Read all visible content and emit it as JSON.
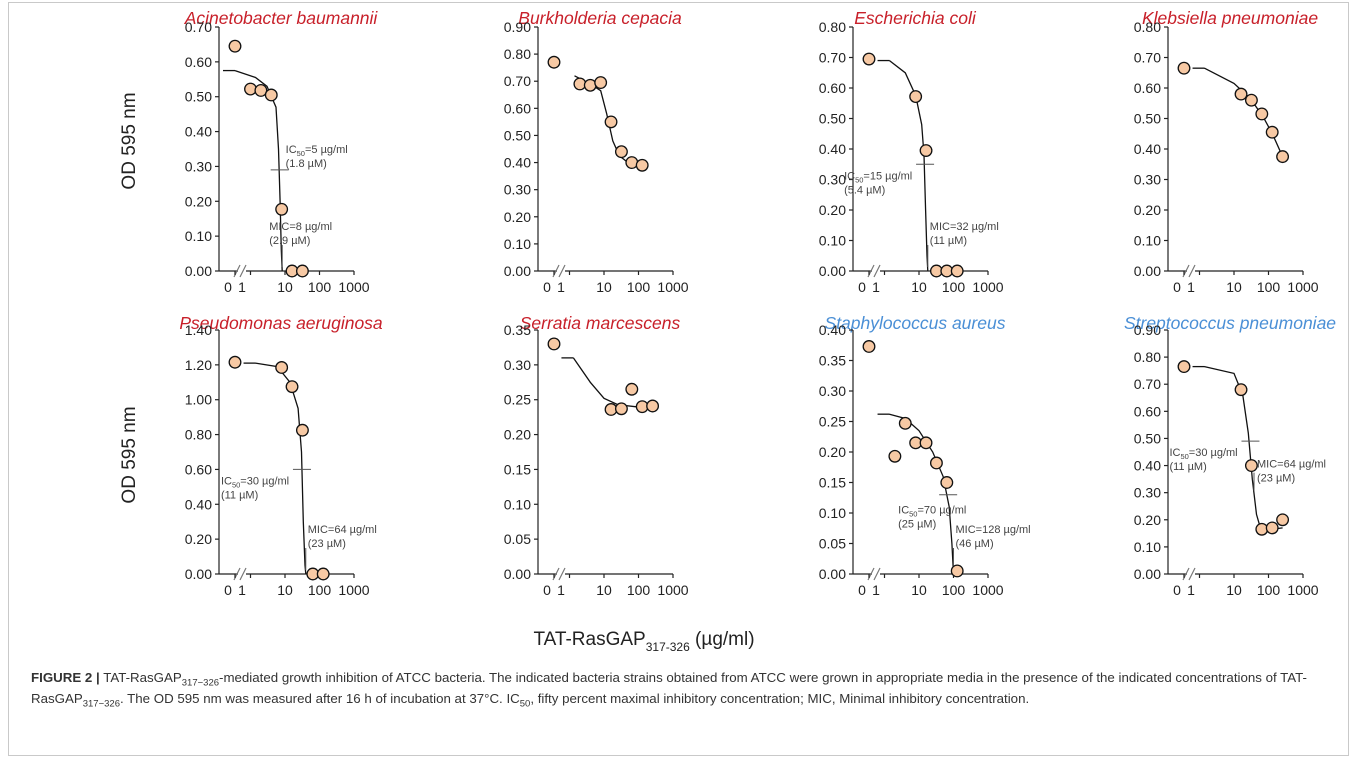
{
  "colors": {
    "gram_negative_title": "#c8202a",
    "gram_positive_title": "#4a8fd6",
    "marker_fill": "#f7c9a4",
    "marker_stroke": "#111111",
    "curve": "#111111",
    "axis": "#222222",
    "annotation_text": "#444444"
  },
  "figure": {
    "shared_ylabel": "OD 595 nm",
    "shared_xlabel_main": "TAT-RasGAP",
    "shared_xlabel_sub": "317-326",
    "shared_xlabel_unit": " (µg/ml)"
  },
  "caption": {
    "label": "FIGURE 2 |",
    "p1": " TAT-RasGAP",
    "sub1": "317−326",
    "p2": "-mediated growth inhibition of ATCC bacteria.  The indicated bacteria strains obtained from ATCC were grown in appropriate media in the presence of the indicated concentrations of TAT-RasGAP",
    "sub2": "317−326",
    "p3": ". The OD 595 nm was measured after 16 h of incubation at 37°C. IC",
    "sub3": "50",
    "p4": ", fifty percent maximal inhibitory concentration; MIC, Minimal inhibitory concentration."
  },
  "chart_data": [
    {
      "type": "scatter",
      "title": "Acinetobacter baumannii",
      "group": "gram_negative",
      "ylim": [
        0,
        0.7
      ],
      "yticks": [
        "0.00",
        "0.10",
        "0.20",
        "0.30",
        "0.40",
        "0.50",
        "0.60",
        "0.70"
      ],
      "xtick_labels": [
        "0",
        "1",
        "10",
        "100",
        "1000"
      ],
      "points": [
        {
          "x": 0,
          "y": 0.645
        },
        {
          "x": 1,
          "y": 0.522
        },
        {
          "x": 2,
          "y": 0.518
        },
        {
          "x": 4,
          "y": 0.505
        },
        {
          "x": 8,
          "y": 0.177
        },
        {
          "x": 16,
          "y": 0.0
        },
        {
          "x": 32,
          "y": 0.0
        }
      ],
      "curve": [
        [
          0,
          0.575
        ],
        [
          1.4,
          0.555
        ],
        [
          3,
          0.53
        ],
        [
          5.5,
          0.47
        ],
        [
          6.5,
          0.35
        ],
        [
          7.2,
          0.2
        ],
        [
          7.8,
          0.06
        ],
        [
          8.3,
          0.0
        ]
      ],
      "annotations": [
        {
          "kind": "ic50",
          "line1_pre": "IC",
          "line1_sub": "50",
          "line1_post": "=5 µg/ml",
          "line2": "(1.8 µM)",
          "x": 7.0,
          "y": 0.29
        },
        {
          "kind": "mic",
          "line1_pre": "MIC=8 µg/ml",
          "line1_sub": "",
          "line1_post": "",
          "line2": "(2.9 µM)",
          "x": 8.3,
          "y": 0.0
        }
      ]
    },
    {
      "type": "scatter",
      "title": "Burkholderia cepacia",
      "group": "gram_negative",
      "ylim": [
        0,
        0.9
      ],
      "yticks": [
        "0.00",
        "0.10",
        "0.20",
        "0.30",
        "0.40",
        "0.50",
        "0.60",
        "0.70",
        "0.80",
        "0.90"
      ],
      "xtick_labels": [
        "0",
        "1",
        "10",
        "100",
        "1000"
      ],
      "points": [
        {
          "x": 0,
          "y": 0.77
        },
        {
          "x": 2,
          "y": 0.69
        },
        {
          "x": 4,
          "y": 0.685
        },
        {
          "x": 8,
          "y": 0.695
        },
        {
          "x": 16,
          "y": 0.55
        },
        {
          "x": 32,
          "y": 0.44
        },
        {
          "x": 64,
          "y": 0.4
        },
        {
          "x": 128,
          "y": 0.39
        }
      ],
      "curve": [
        [
          1.4,
          0.72
        ],
        [
          4,
          0.69
        ],
        [
          8,
          0.665
        ],
        [
          12,
          0.58
        ],
        [
          18,
          0.48
        ],
        [
          28,
          0.425
        ],
        [
          50,
          0.4
        ],
        [
          120,
          0.39
        ]
      ],
      "annotations": []
    },
    {
      "type": "scatter",
      "title": "Escherichia coli",
      "group": "gram_negative",
      "ylim": [
        0,
        0.8
      ],
      "yticks": [
        "0.00",
        "0.10",
        "0.20",
        "0.30",
        "0.40",
        "0.50",
        "0.60",
        "0.70",
        "0.80"
      ],
      "xtick_labels": [
        "0",
        "1",
        "10",
        "100",
        "1000"
      ],
      "points": [
        {
          "x": 0,
          "y": 0.695
        },
        {
          "x": 8,
          "y": 0.572
        },
        {
          "x": 16,
          "y": 0.395
        },
        {
          "x": 32,
          "y": 0.0
        },
        {
          "x": 64,
          "y": 0.0
        },
        {
          "x": 128,
          "y": 0.0
        }
      ],
      "curve": [
        [
          1.4,
          0.69
        ],
        [
          4,
          0.65
        ],
        [
          8,
          0.575
        ],
        [
          12,
          0.48
        ],
        [
          14,
          0.38
        ],
        [
          15.5,
          0.2
        ],
        [
          17,
          0.05
        ],
        [
          18,
          0.0
        ]
      ],
      "annotations": [
        {
          "kind": "ic50",
          "line1_pre": "IC",
          "line1_sub": "50",
          "line1_post": "=15 µg/ml",
          "line2": "(5.4 µM)",
          "x": 15.0,
          "y": 0.35
        },
        {
          "kind": "mic",
          "line1_pre": "MIC=32 µg/ml",
          "line1_sub": "",
          "line1_post": "",
          "line2": "(11 µM)",
          "x": 18.0,
          "y": 0.0
        }
      ]
    },
    {
      "type": "scatter",
      "title": "Klebsiella pneumoniae",
      "group": "gram_negative",
      "ylim": [
        0,
        0.8
      ],
      "yticks": [
        "0.00",
        "0.10",
        "0.20",
        "0.30",
        "0.40",
        "0.50",
        "0.60",
        "0.70",
        "0.80"
      ],
      "xtick_labels": [
        "0",
        "1",
        "10",
        "100",
        "1000"
      ],
      "points": [
        {
          "x": 0,
          "y": 0.665
        },
        {
          "x": 16,
          "y": 0.58
        },
        {
          "x": 32,
          "y": 0.56
        },
        {
          "x": 64,
          "y": 0.515
        },
        {
          "x": 128,
          "y": 0.455
        },
        {
          "x": 256,
          "y": 0.375
        }
      ],
      "curve": [
        [
          1.4,
          0.665
        ],
        [
          10,
          0.615
        ],
        [
          30,
          0.565
        ],
        [
          70,
          0.505
        ],
        [
          130,
          0.45
        ],
        [
          256,
          0.375
        ]
      ],
      "annotations": []
    },
    {
      "type": "scatter",
      "title": "Pseudomonas aeruginosa",
      "group": "gram_negative",
      "ylim": [
        0,
        1.4
      ],
      "yticks": [
        "0.00",
        "0.20",
        "0.40",
        "0.60",
        "0.80",
        "1.00",
        "1.20",
        "1.40"
      ],
      "xtick_labels": [
        "0",
        "1",
        "10",
        "100",
        "1000"
      ],
      "points": [
        {
          "x": 0,
          "y": 1.215
        },
        {
          "x": 8,
          "y": 1.185
        },
        {
          "x": 16,
          "y": 1.075
        },
        {
          "x": 32,
          "y": 0.825
        },
        {
          "x": 64,
          "y": 0.0
        },
        {
          "x": 128,
          "y": 0.0
        }
      ],
      "curve": [
        [
          1.4,
          1.21
        ],
        [
          6,
          1.19
        ],
        [
          14,
          1.1
        ],
        [
          24,
          0.95
        ],
        [
          30,
          0.7
        ],
        [
          34,
          0.3
        ],
        [
          38,
          0.05
        ],
        [
          40,
          0.0
        ]
      ],
      "annotations": [
        {
          "kind": "ic50",
          "line1_pre": "IC",
          "line1_sub": "50",
          "line1_post": "=30 µg/ml",
          "line2": "(11 µM)",
          "x": 31.0,
          "y": 0.6
        },
        {
          "kind": "mic",
          "line1_pre": "MIC=64 µg/ml",
          "line1_sub": "",
          "line1_post": "",
          "line2": "(23 µM)",
          "x": 40.0,
          "y": 0.0
        }
      ]
    },
    {
      "type": "scatter",
      "title": "Serratia marcescens",
      "group": "gram_negative",
      "ylim": [
        0,
        0.35
      ],
      "yticks": [
        "0.00",
        "0.05",
        "0.10",
        "0.15",
        "0.20",
        "0.25",
        "0.30",
        "0.35"
      ],
      "xtick_labels": [
        "0",
        "1",
        "10",
        "100",
        "1000"
      ],
      "points": [
        {
          "x": 0,
          "y": 0.33
        },
        {
          "x": 16,
          "y": 0.236
        },
        {
          "x": 32,
          "y": 0.237
        },
        {
          "x": 64,
          "y": 0.265
        },
        {
          "x": 128,
          "y": 0.24
        },
        {
          "x": 256,
          "y": 0.241
        }
      ],
      "curve": [
        [
          1.3,
          0.31
        ],
        [
          4,
          0.275
        ],
        [
          10,
          0.252
        ],
        [
          25,
          0.243
        ],
        [
          80,
          0.24
        ],
        [
          256,
          0.24
        ]
      ],
      "annotations": []
    },
    {
      "type": "scatter",
      "title": "Staphylococcus aureus",
      "group": "gram_positive",
      "ylim": [
        0,
        0.4
      ],
      "yticks": [
        "0.00",
        "0.05",
        "0.10",
        "0.15",
        "0.20",
        "0.25",
        "0.30",
        "0.35",
        "0.40"
      ],
      "xtick_labels": [
        "0",
        "1",
        "10",
        "100",
        "1000"
      ],
      "points": [
        {
          "x": 0,
          "y": 0.373
        },
        {
          "x": 2,
          "y": 0.193
        },
        {
          "x": 4,
          "y": 0.247
        },
        {
          "x": 8,
          "y": 0.215
        },
        {
          "x": 16,
          "y": 0.215
        },
        {
          "x": 32,
          "y": 0.182
        },
        {
          "x": 64,
          "y": 0.15
        },
        {
          "x": 128,
          "y": 0.005
        }
      ],
      "curve": [
        [
          1.4,
          0.262
        ],
        [
          4,
          0.255
        ],
        [
          10,
          0.235
        ],
        [
          25,
          0.2
        ],
        [
          50,
          0.16
        ],
        [
          75,
          0.11
        ],
        [
          90,
          0.05
        ],
        [
          100,
          0.0
        ]
      ],
      "annotations": [
        {
          "kind": "ic50",
          "line1_pre": "IC",
          "line1_sub": "50",
          "line1_post": "=70 µg/ml",
          "line2": "(25 µM)",
          "x": 70.0,
          "y": 0.13
        },
        {
          "kind": "mic",
          "line1_pre": "MIC=128 µg/ml",
          "line1_sub": "",
          "line1_post": "",
          "line2": "(46 µM)",
          "x": 100.0,
          "y": 0.0
        }
      ]
    },
    {
      "type": "scatter",
      "title": "Streptococcus pneumoniae",
      "group": "gram_positive",
      "ylim": [
        0,
        0.9
      ],
      "yticks": [
        "0.00",
        "0.10",
        "0.20",
        "0.30",
        "0.40",
        "0.50",
        "0.60",
        "0.70",
        "0.80",
        "0.90"
      ],
      "xtick_labels": [
        "0",
        "1",
        "10",
        "100",
        "1000"
      ],
      "points": [
        {
          "x": 0,
          "y": 0.765
        },
        {
          "x": 16,
          "y": 0.68
        },
        {
          "x": 32,
          "y": 0.4
        },
        {
          "x": 64,
          "y": 0.165
        },
        {
          "x": 128,
          "y": 0.17
        },
        {
          "x": 256,
          "y": 0.2
        }
      ],
      "curve": [
        [
          1.4,
          0.765
        ],
        [
          10,
          0.74
        ],
        [
          18,
          0.66
        ],
        [
          26,
          0.52
        ],
        [
          34,
          0.35
        ],
        [
          45,
          0.22
        ],
        [
          60,
          0.165
        ],
        [
          120,
          0.165
        ],
        [
          256,
          0.17
        ]
      ],
      "annotations": [
        {
          "kind": "ic50",
          "line1_pre": "IC",
          "line1_sub": "50",
          "line1_post": "=30 µg/ml",
          "line2": "(11 µM)",
          "x": 30.0,
          "y": 0.49
        },
        {
          "kind": "mic",
          "line1_pre": "MIC=64 µg/ml",
          "line1_sub": "",
          "line1_post": "",
          "line2": "(23 µM)",
          "x": 38.0,
          "y": 0.3
        }
      ]
    }
  ]
}
